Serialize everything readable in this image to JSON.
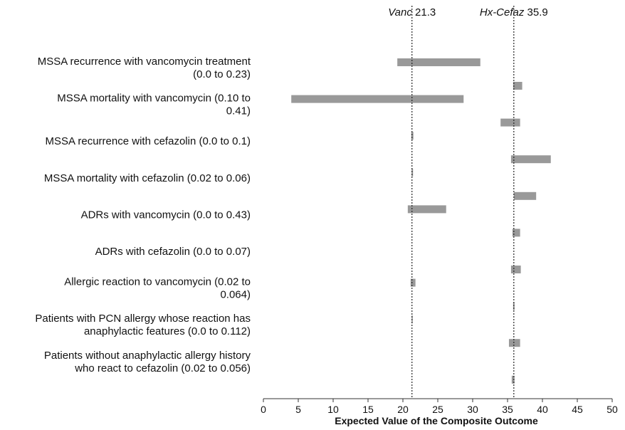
{
  "chart_data": {
    "type": "bar",
    "orientation": "horizontal",
    "xlabel": "Expected Value of the Composite Outcome",
    "xlim": [
      0,
      50
    ],
    "xticks": [
      0,
      5,
      10,
      15,
      20,
      25,
      30,
      35,
      40,
      45,
      50
    ],
    "grid": false,
    "reference_lines": [
      {
        "name": "Vanc",
        "value": 21.3,
        "label_value": "21.3"
      },
      {
        "name": "Hx-Cefaz",
        "value": 35.9,
        "label_value": "35.9"
      }
    ],
    "parameters": [
      {
        "label_lines": [
          "MSSA recurrence with vancomycin treatment",
          "(0.0 to 0.23)"
        ],
        "vanc_bar": [
          19.2,
          31.1
        ],
        "cefaz_bar": [
          35.8,
          37.1
        ]
      },
      {
        "label_lines": [
          "MSSA mortality with vancomycin (0.10 to",
          "0.41)"
        ],
        "vanc_bar": [
          4.0,
          28.7
        ],
        "cefaz_bar": [
          34.0,
          36.8
        ]
      },
      {
        "label_lines": [
          "MSSA recurrence with cefazolin (0.0 to 0.1)"
        ],
        "vanc_bar": [
          21.2,
          21.5
        ],
        "cefaz_bar": [
          35.5,
          41.2
        ]
      },
      {
        "label_lines": [
          "MSSA mortality with cefazolin (0.02 to 0.06)"
        ],
        "vanc_bar": [
          21.25,
          21.45
        ],
        "cefaz_bar": [
          35.9,
          39.1
        ]
      },
      {
        "label_lines": [
          "ADRs with vancomycin  (0.0 to 0.43)"
        ],
        "vanc_bar": [
          20.7,
          26.2
        ],
        "cefaz_bar": [
          35.7,
          36.8
        ]
      },
      {
        "label_lines": [
          "ADRs with cefazolin (0.0 to 0.07)"
        ],
        "vanc_bar": null,
        "cefaz_bar": [
          35.5,
          36.9
        ]
      },
      {
        "label_lines": [
          "Allergic reaction to vancomycin (0.02 to",
          "0.064)"
        ],
        "vanc_bar": [
          21.1,
          21.8
        ],
        "cefaz_bar": [
          35.8,
          36.0
        ]
      },
      {
        "label_lines": [
          "Patients with PCN allergy whose reaction has",
          "anaphylactic features (0.0 to 0.112)"
        ],
        "vanc_bar": [
          21.25,
          21.4
        ],
        "cefaz_bar": [
          35.2,
          36.8
        ]
      },
      {
        "label_lines": [
          "Patients without anaphylactic allergy history",
          "who react to cefazolin (0.02 to 0.056)"
        ],
        "vanc_bar": null,
        "cefaz_bar": [
          35.6,
          36.0
        ]
      }
    ],
    "bar_color": "#999999"
  }
}
